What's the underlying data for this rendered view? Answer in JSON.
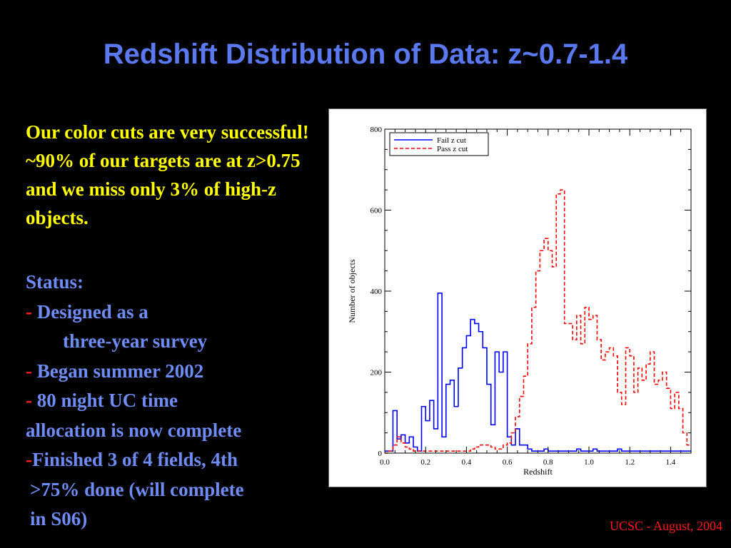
{
  "slide": {
    "title": "Redshift Distribution of Data: z~0.7-1.4",
    "intro": "Our color cuts are very successful!  ~90% of our targets are at z>0.75 and we miss only 3% of high-z objects.",
    "status_heading": "Status:",
    "status_lines": [
      {
        "dash": "- ",
        "text": "Designed as a"
      },
      {
        "dash": "",
        "text": "three-year survey"
      },
      {
        "dash": "- ",
        "text": "Began summer 2002"
      },
      {
        "dash": "- ",
        "text": "80 night UC time"
      },
      {
        "dash": "",
        "text": "allocation is now complete"
      },
      {
        "dash": "-",
        "text": "Finished 3 of 4 fields, 4th"
      },
      {
        "dash": "",
        "text": ">75% done (will complete"
      },
      {
        "dash": "",
        "text": "in S06)"
      }
    ],
    "footer": "UCSC - August, 2004"
  },
  "colors": {
    "title": "#5a78f0",
    "intro": "#ffff00",
    "status": "#6f8cf5",
    "footer": "#ff1a1a",
    "fail_series": "#0000ff",
    "pass_series": "#ff0000"
  },
  "chart_data": {
    "type": "line",
    "style": "step-histogram",
    "title": "",
    "xlabel": "Redshift",
    "ylabel": "Number of objects",
    "xlim": [
      0.0,
      1.5
    ],
    "ylim": [
      0,
      800
    ],
    "xticks": [
      0.0,
      0.2,
      0.4,
      0.6,
      0.8,
      1.0,
      1.2,
      1.4
    ],
    "yticks": [
      0,
      200,
      400,
      600,
      800
    ],
    "xtick_labels": [
      "0.0",
      "0.2",
      "0.4",
      "0.6",
      "0.8",
      "1.0",
      "1.2",
      "1.4"
    ],
    "ytick_labels": [
      "0",
      "200",
      "400",
      "600",
      "800"
    ],
    "bin_width": 0.02,
    "bin_start": 0.0,
    "grid": false,
    "legend_position": "top-left",
    "series": [
      {
        "name": "Fail z cut",
        "line_style": "solid",
        "color": "#0000ff",
        "values": [
          5,
          5,
          105,
          35,
          45,
          25,
          40,
          15,
          5,
          115,
          80,
          130,
          60,
          395,
          40,
          170,
          180,
          115,
          210,
          260,
          290,
          330,
          320,
          300,
          260,
          170,
          70,
          250,
          200,
          250,
          40,
          20,
          60,
          20,
          20,
          10,
          5,
          5,
          5,
          10,
          5,
          5,
          5,
          5,
          5,
          5,
          5,
          10,
          5,
          5,
          5,
          10,
          5,
          5,
          5,
          5,
          5,
          10,
          5,
          5,
          5,
          5,
          5,
          5,
          5,
          5,
          5,
          5,
          5,
          5,
          5,
          5,
          5,
          5,
          5
        ]
      },
      {
        "name": "Pass z cut",
        "line_style": "dashed",
        "color": "#ff0000",
        "values": [
          0,
          5,
          20,
          40,
          25,
          15,
          10,
          5,
          5,
          5,
          5,
          5,
          5,
          5,
          5,
          5,
          5,
          5,
          5,
          5,
          5,
          10,
          15,
          20,
          20,
          20,
          15,
          10,
          10,
          20,
          25,
          50,
          90,
          140,
          190,
          270,
          360,
          450,
          500,
          530,
          500,
          460,
          640,
          650,
          320,
          320,
          280,
          340,
          270,
          360,
          330,
          340,
          280,
          230,
          250,
          260,
          240,
          150,
          120,
          260,
          240,
          150,
          210,
          180,
          220,
          250,
          170,
          180,
          200,
          160,
          110,
          150,
          110,
          50,
          20
        ]
      }
    ]
  }
}
